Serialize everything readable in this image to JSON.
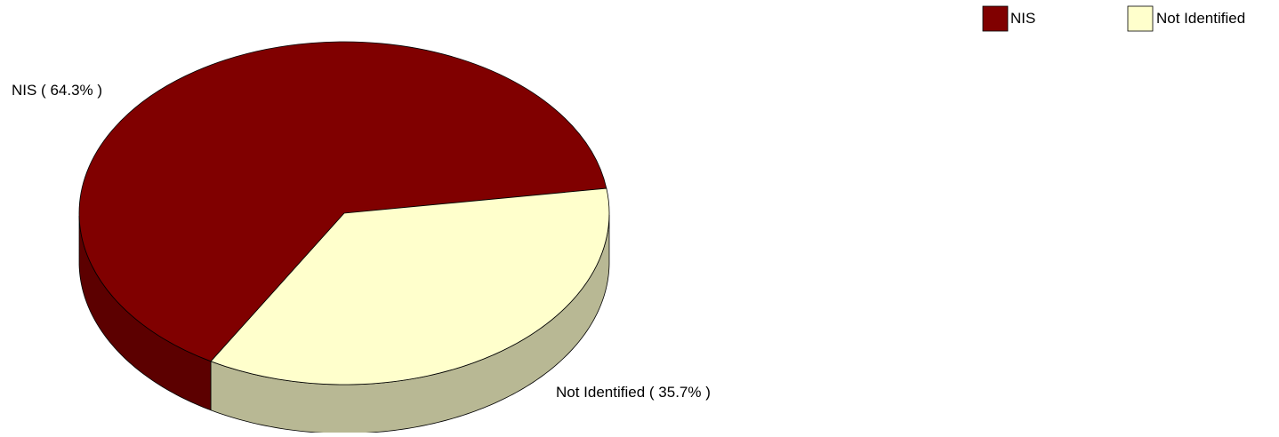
{
  "chart_data": {
    "type": "pie",
    "style": "3d",
    "slices": [
      {
        "label": "NIS",
        "value": 64.3,
        "data_label": "NIS  ( 64.3% )",
        "color": "#800000",
        "side_color": "#5c0000"
      },
      {
        "label": "Not Identified",
        "value": 35.7,
        "data_label": "Not Identified  ( 35.7% )",
        "color": "#ffffcc",
        "side_color": "#b8b894"
      }
    ],
    "legend": {
      "placement": "top-right",
      "items": [
        {
          "label": "NIS",
          "color": "#800000"
        },
        {
          "label": "Not Identified",
          "color": "#ffffcc"
        }
      ]
    }
  }
}
